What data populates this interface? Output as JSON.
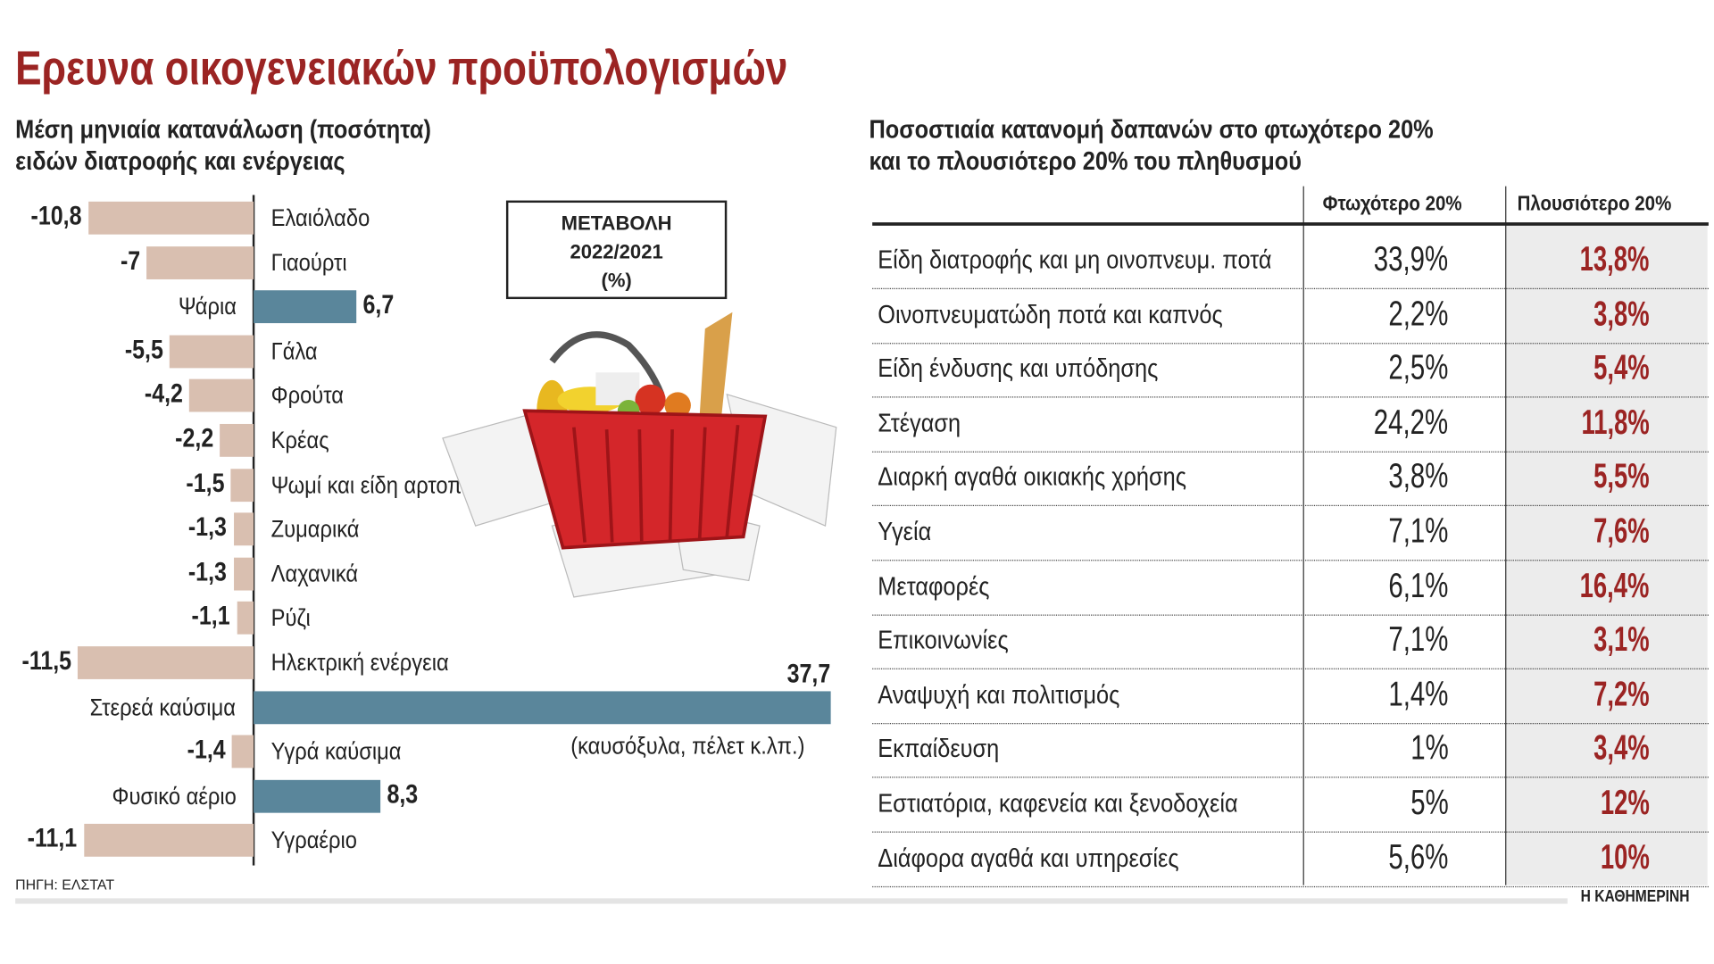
{
  "title": "Ερευνα οικογενειακών προϋπολογισμών",
  "left_subtitle": [
    "Μέση μηνιαία κατανάλωση (ποσότητα)",
    "ειδών διατροφής και ενέργειας"
  ],
  "right_subtitle": [
    "Ποσοστιαία κατανομή δαπανών στο φτωχότερο 20%",
    "και το πλουσιότερο 20% του πληθυσμού"
  ],
  "box": [
    "ΜΕΤΑΒΟΛΗ",
    "2022/2021",
    "(%)"
  ],
  "note": "(καυσόξυλα, πέλετ κ.λπ.)",
  "source": "ΠΗΓΗ: ΕΛΣΤΑΤ",
  "brand": "Η ΚΑΘΗΜΕΡΙΝΗ",
  "colors": {
    "negative": "#d9bfb0",
    "positive": "#5a869b",
    "accent": "#9b2423"
  },
  "chart_data": [
    {
      "type": "bar",
      "orientation": "horizontal",
      "title": "ΜΕΤΑΒΟΛΗ 2022/2021 (%)",
      "categories": [
        "Ελαιόλαδο",
        "Γιαούρτι",
        "Ψάρια",
        "Γάλα",
        "Φρούτα",
        "Κρέας",
        "Ψωμί και είδη αρτοποιίας",
        "Ζυμαρικά",
        "Λαχανικά",
        "Ρύζι",
        "Ηλεκτρική ενέργεια",
        "Στερεά καύσιμα",
        "Υγρά καύσιμα",
        "Φυσικό αέριο",
        "Υγραέριο"
      ],
      "values": [
        -10.8,
        -7,
        6.7,
        -5.5,
        -4.2,
        -2.2,
        -1.5,
        -1.3,
        -1.3,
        -1.1,
        -11.5,
        37.7,
        -1.4,
        8.3,
        -11.1
      ],
      "labels": [
        "-10,8",
        "-7",
        "6,7",
        "-5,5",
        "-4,2",
        "-2,2",
        "-1,5",
        "-1,3",
        "-1,3",
        "-1,1",
        "-11,5",
        "37,7",
        "-1,4",
        "8,3",
        "-11,1"
      ]
    },
    {
      "type": "table",
      "columns": [
        "",
        "Φτωχότερο 20%",
        "Πλουσιότερο 20%"
      ],
      "rows": [
        [
          "Είδη διατροφής και μη οινοπνευμ. ποτά",
          "33,9%",
          "13,8%"
        ],
        [
          "Οινοπνευματώδη ποτά και καπνός",
          "2,2%",
          "3,8%"
        ],
        [
          "Είδη ένδυσης και υπόδησης",
          "2,5%",
          "5,4%"
        ],
        [
          "Στέγαση",
          "24,2%",
          "11,8%"
        ],
        [
          "Διαρκή αγαθά οικιακής χρήσης",
          "3,8%",
          "5,5%"
        ],
        [
          "Υγεία",
          "7,1%",
          "7,6%"
        ],
        [
          "Μεταφορές",
          "6,1%",
          "16,4%"
        ],
        [
          "Επικοινωνίες",
          "7,1%",
          "3,1%"
        ],
        [
          "Αναψυχή και πολιτισμός",
          "1,4%",
          "7,2%"
        ],
        [
          "Εκπαίδευση",
          "1%",
          "3,4%"
        ],
        [
          "Εστιατόρια, καφενεία και ξενοδοχεία",
          "5%",
          "12%"
        ],
        [
          "Διάφορα αγαθά και υπηρεσίες",
          "5,6%",
          "10%"
        ]
      ]
    }
  ]
}
